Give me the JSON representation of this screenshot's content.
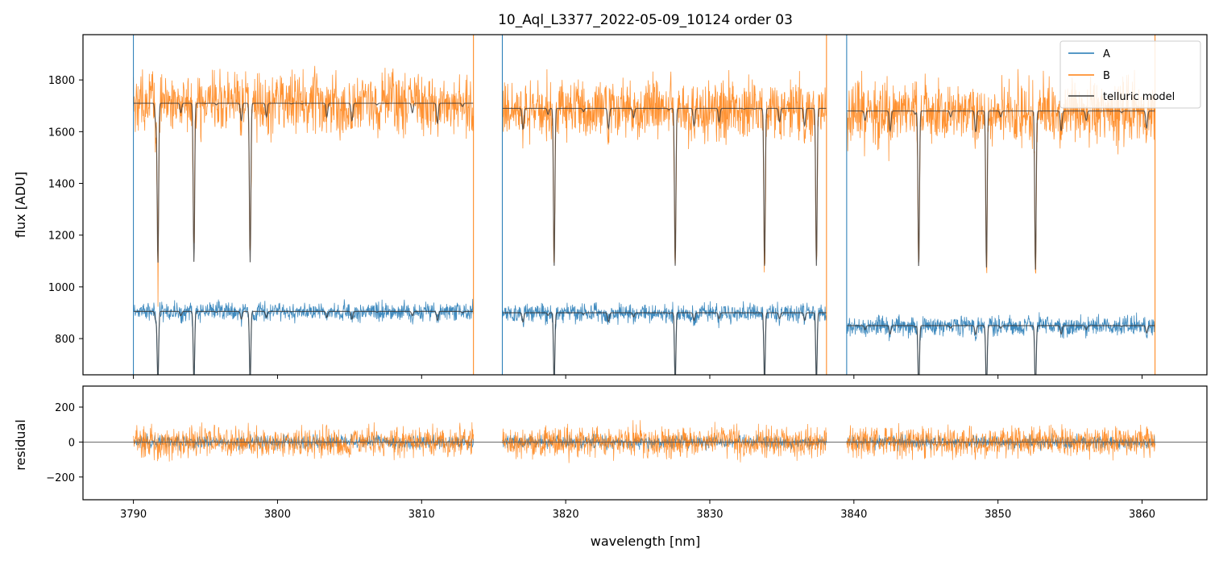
{
  "title": "10_Aql_L3377_2022-05-09_10124  order 03",
  "colors": {
    "A": "#1f77b4",
    "B": "#ff7f0e",
    "model": "#3a3a3a",
    "zero": "#555555"
  },
  "chart_data": [
    {
      "type": "line",
      "panel": "top",
      "title": "10_Aql_L3377_2022-05-09_10124  order 03",
      "xlabel": "",
      "ylabel": "flux [ADU]",
      "xlim": [
        3786.5,
        3864.5
      ],
      "ylim": [
        660,
        1975
      ],
      "yticks": [
        800,
        1000,
        1200,
        1400,
        1600,
        1800
      ],
      "ytick_labels": [
        "800",
        "1000",
        "1200",
        "1400",
        "1600",
        "1800"
      ],
      "segments": [
        [
          3790.0,
          3813.6
        ],
        [
          3815.6,
          3838.1
        ],
        [
          3839.5,
          3860.9
        ]
      ],
      "telluric_lines": [
        3791.7,
        3794.2,
        3798.1,
        3819.2,
        3827.6,
        3833.8,
        3837.4,
        3844.5,
        3849.2,
        3852.6
      ],
      "series": [
        {
          "name": "A",
          "approx_level": [
            900,
            905,
            895
          ],
          "noise_amplitude": 55
        },
        {
          "name": "B",
          "approx_level": [
            1690,
            1680,
            1650
          ],
          "noise_amplitude": 180
        },
        {
          "name": "telluric model",
          "approx_level_A": [
            905,
            900,
            850
          ],
          "approx_level_B": [
            1710,
            1690,
            1680
          ]
        }
      ],
      "legend": {
        "position": "top-right",
        "entries": [
          "A",
          "B",
          "telluric model"
        ]
      }
    },
    {
      "type": "line",
      "panel": "bottom",
      "xlabel": "wavelength [nm]",
      "ylabel": "residual",
      "xlim": [
        3786.5,
        3864.5
      ],
      "ylim": [
        -330,
        320
      ],
      "xticks": [
        3790,
        3800,
        3810,
        3820,
        3830,
        3840,
        3850,
        3860
      ],
      "xtick_labels": [
        "3790",
        "3800",
        "3810",
        "3820",
        "3830",
        "3840",
        "3850",
        "3860"
      ],
      "yticks": [
        -200,
        0,
        200
      ],
      "ytick_labels": [
        "−200",
        "0",
        "200"
      ],
      "series": [
        {
          "name": "A",
          "noise_amplitude": 55
        },
        {
          "name": "B",
          "noise_amplitude": 130
        }
      ],
      "zero_line": 0
    }
  ]
}
